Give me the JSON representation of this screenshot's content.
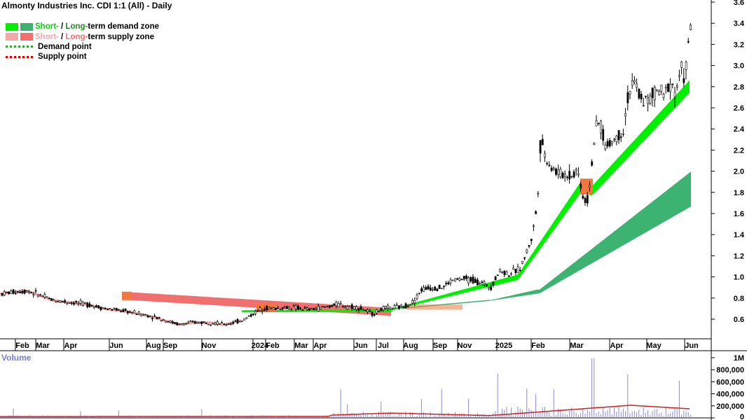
{
  "title": "Almonty Industries Inc. CDI 1:1 (All) - Daily",
  "legend": {
    "short_prefix": "Short-",
    "long_prefix": "Long-",
    "demand_zone": "term demand zone",
    "supply_zone": "term supply zone",
    "demand_point": "Demand point",
    "supply_point": "Supply point",
    "separator": " / "
  },
  "volume_label": "Volume",
  "colors": {
    "short_demand": "#00f000",
    "long_demand": "#3cb371",
    "short_supply": "#f4a8a8",
    "long_supply": "#f07070",
    "demand_point": "#00c800",
    "supply_point": "#d00000",
    "short_demand_text": "#00dd00",
    "long_demand_text": "#228b22",
    "short_supply_text": "#f4a8a8",
    "long_supply_text": "#f07070",
    "volume_bar": "#8a8ad8",
    "volume_avg": "#d02020"
  },
  "chart_data": {
    "type": "candlestick",
    "y_axis": {
      "min": 0.4,
      "max": 3.6,
      "ticks": [
        "0.6",
        "0.8",
        "1.0",
        "1.2",
        "1.4",
        "1.6",
        "1.8",
        "2.0",
        "2.2",
        "2.4",
        "2.6",
        "2.8",
        "3.0",
        "3.2",
        "3.4",
        "3.6"
      ],
      "position": "right"
    },
    "x_axis": {
      "labels": [
        "Feb",
        "Mar",
        "Apr",
        "Jun",
        "Aug",
        "Sep",
        "Nov",
        "2024",
        "Feb",
        "Mar",
        "Apr",
        "Jun",
        "Jul",
        "Aug",
        "Sep",
        "Nov",
        "2025",
        "Feb",
        "Mar",
        "Apr",
        "May",
        "Jun"
      ]
    },
    "volume_axis": {
      "min": 0,
      "max": 1000000,
      "ticks": [
        "0",
        "200,000",
        "400,000",
        "600,000",
        "800,000",
        "1M"
      ]
    },
    "price_path": [
      [
        0,
        0.84
      ],
      [
        20,
        0.86
      ],
      [
        38,
        0.87
      ],
      [
        55,
        0.83
      ],
      [
        75,
        0.78
      ],
      [
        100,
        0.76
      ],
      [
        125,
        0.74
      ],
      [
        150,
        0.7
      ],
      [
        175,
        0.68
      ],
      [
        200,
        0.65
      ],
      [
        220,
        0.62
      ],
      [
        240,
        0.58
      ],
      [
        255,
        0.55
      ],
      [
        275,
        0.57
      ],
      [
        300,
        0.57
      ],
      [
        320,
        0.55
      ],
      [
        345,
        0.59
      ],
      [
        360,
        0.65
      ],
      [
        375,
        0.71
      ],
      [
        390,
        0.7
      ],
      [
        405,
        0.71
      ],
      [
        420,
        0.71
      ],
      [
        440,
        0.69
      ],
      [
        460,
        0.71
      ],
      [
        480,
        0.74
      ],
      [
        500,
        0.72
      ],
      [
        515,
        0.7
      ],
      [
        530,
        0.65
      ],
      [
        545,
        0.7
      ],
      [
        560,
        0.71
      ],
      [
        575,
        0.72
      ],
      [
        590,
        0.77
      ],
      [
        600,
        0.88
      ],
      [
        615,
        0.9
      ],
      [
        630,
        0.9
      ],
      [
        645,
        0.97
      ],
      [
        660,
        0.98
      ],
      [
        675,
        0.97
      ],
      [
        690,
        0.93
      ],
      [
        700,
        0.91
      ],
      [
        712,
        1.06
      ],
      [
        725,
        1.03
      ],
      [
        740,
        1.07
      ],
      [
        750,
        1.22
      ],
      [
        758,
        1.38
      ],
      [
        763,
        1.56
      ],
      [
        767,
        1.85
      ],
      [
        771,
        2.37
      ],
      [
        775,
        2.17
      ],
      [
        785,
        2.05
      ],
      [
        795,
        1.98
      ],
      [
        805,
        1.97
      ],
      [
        815,
        1.96
      ],
      [
        822,
        2.02
      ],
      [
        827,
        1.9
      ],
      [
        832,
        1.72
      ],
      [
        838,
        1.73
      ],
      [
        843,
        2.05
      ],
      [
        848,
        2.35
      ],
      [
        855,
        2.48
      ],
      [
        863,
        2.23
      ],
      [
        872,
        2.28
      ],
      [
        880,
        2.33
      ],
      [
        888,
        2.38
      ],
      [
        896,
        2.75
      ],
      [
        905,
        2.83
      ],
      [
        913,
        2.7
      ],
      [
        922,
        2.66
      ],
      [
        930,
        2.7
      ],
      [
        938,
        2.78
      ],
      [
        946,
        2.7
      ],
      [
        955,
        2.86
      ],
      [
        962,
        2.77
      ],
      [
        968,
        2.85
      ],
      [
        972,
        2.98
      ],
      [
        976,
        2.9
      ],
      [
        980,
        3.05
      ],
      [
        983,
        3.3
      ],
      [
        986,
        3.5
      ]
    ],
    "zones": {
      "short_term_demand": {
        "x_start": 345,
        "x_end": 986
      },
      "long_term_demand": {
        "x_start": 620,
        "x_end": 986,
        "end_upper": 2.0,
        "end_lower": 1.67
      },
      "short_term_supply": {
        "x_start": 0,
        "x_end": 345
      },
      "long_term_supply": {
        "x_start": 174,
        "x_end": 560
      }
    },
    "grid": false,
    "legend_placement": "top-left"
  }
}
